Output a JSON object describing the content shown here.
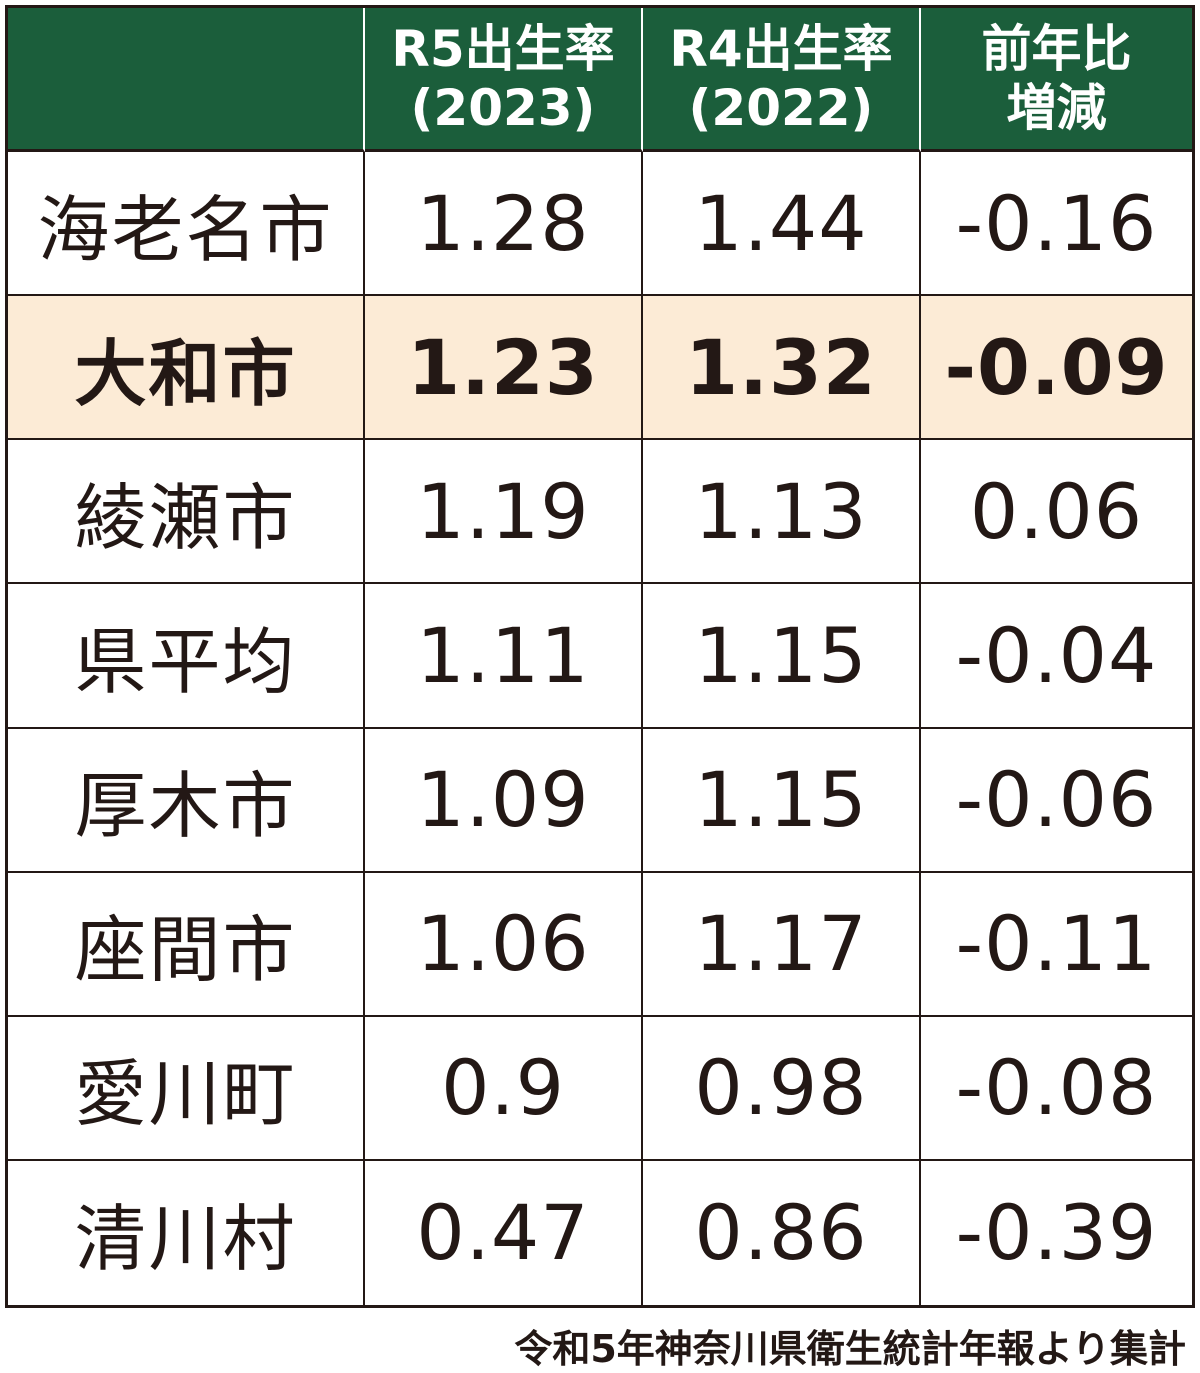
{
  "chart_data": {
    "type": "table",
    "columns": [
      "",
      "R5出生率\n(2023)",
      "R4出生率\n(2022)",
      "前年比\n増減"
    ],
    "rows": [
      {
        "name": "海老名市",
        "r5": "1.28",
        "r4": "1.44",
        "diff": "-0.16",
        "highlight": false
      },
      {
        "name": "大和市",
        "r5": "1.23",
        "r4": "1.32",
        "diff": "-0.09",
        "highlight": true
      },
      {
        "name": "綾瀬市",
        "r5": "1.19",
        "r4": "1.13",
        "diff": "0.06",
        "highlight": false
      },
      {
        "name": "県平均",
        "r5": "1.11",
        "r4": "1.15",
        "diff": "-0.04",
        "highlight": false
      },
      {
        "name": "厚木市",
        "r5": "1.09",
        "r4": "1.15",
        "diff": "-0.06",
        "highlight": false
      },
      {
        "name": "座間市",
        "r5": "1.06",
        "r4": "1.17",
        "diff": "-0.11",
        "highlight": false
      },
      {
        "name": "愛川町",
        "r5": "0.9",
        "r4": "0.98",
        "diff": "-0.08",
        "highlight": false
      },
      {
        "name": "清川村",
        "r5": "0.47",
        "r4": "0.86",
        "diff": "-0.39",
        "highlight": false
      }
    ]
  },
  "source": "令和5年神奈川県衛生統計年報より集計",
  "colors": {
    "header_bg": "#1b5e3b",
    "header_text": "#ffffff",
    "highlight_bg": "#fcebd6",
    "text": "#231815"
  }
}
